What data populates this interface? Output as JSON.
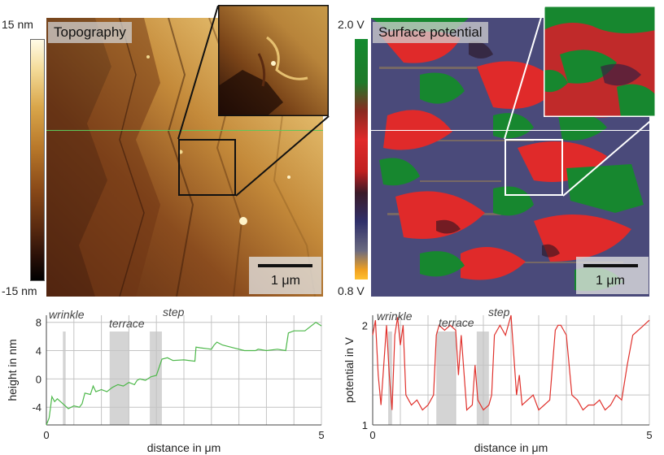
{
  "topography": {
    "title": "Topography",
    "cbar_max": "15 nm",
    "cbar_min": "-15 nm",
    "scale_bar": "1 μm"
  },
  "potential": {
    "title": "Surface potential",
    "cbar_max": "2.0 V",
    "cbar_min": "0.8 V",
    "scale_bar": "1 μm"
  },
  "chart_data": [
    {
      "type": "line",
      "xlabel": "distance in μm",
      "ylabel": "height in nm",
      "xlim": [
        0,
        5
      ],
      "ylim": [
        -6.5,
        9
      ],
      "xticks": [
        "0",
        "5"
      ],
      "yticks": [
        "-4",
        "0",
        "4",
        "8"
      ],
      "annotations": [
        "wrinkle",
        "terrace",
        "step"
      ],
      "highlight_ranges": [
        [
          0.3,
          0.35
        ],
        [
          1.15,
          1.5
        ],
        [
          1.88,
          2.1
        ]
      ],
      "series_color": "#4db84a",
      "x": [
        0,
        0.05,
        0.1,
        0.15,
        0.2,
        0.3,
        0.4,
        0.5,
        0.6,
        0.65,
        0.7,
        0.8,
        0.85,
        0.9,
        1.0,
        1.1,
        1.2,
        1.3,
        1.4,
        1.5,
        1.6,
        1.65,
        1.7,
        1.8,
        1.9,
        2.0,
        2.1,
        2.2,
        2.3,
        2.5,
        2.7,
        2.72,
        2.8,
        3.0,
        3.05,
        3.1,
        3.2,
        3.4,
        3.6,
        3.8,
        3.85,
        4.0,
        4.2,
        4.35,
        4.4,
        4.5,
        4.7,
        4.9,
        5.0
      ],
      "values": [
        -6.5,
        -5.5,
        -2.5,
        -3.2,
        -2.8,
        -3.5,
        -4.2,
        -3.8,
        -4.0,
        -3.5,
        -2.0,
        -2.2,
        -1.0,
        -1.8,
        -1.5,
        -1.8,
        -1.2,
        -0.8,
        -1.0,
        -0.5,
        -0.8,
        -0.2,
        0.0,
        -0.2,
        0.3,
        0.5,
        2.8,
        3.0,
        2.6,
        2.7,
        2.5,
        4.5,
        4.4,
        4.2,
        4.8,
        5.2,
        4.8,
        4.4,
        4.0,
        4.0,
        4.2,
        4.0,
        4.2,
        4.0,
        6.5,
        6.8,
        6.8,
        8.0,
        7.5
      ]
    },
    {
      "type": "line",
      "xlabel": "distance in μm",
      "ylabel": "potential in V",
      "xlim": [
        0,
        5
      ],
      "ylim": [
        1.0,
        2.1
      ],
      "xticks": [
        "0",
        "5"
      ],
      "yticks": [
        "1",
        "2"
      ],
      "annotations": [
        "wrinkle",
        "terrace",
        "step"
      ],
      "highlight_ranges": [
        [
          0.28,
          0.35
        ],
        [
          1.15,
          1.5
        ],
        [
          1.88,
          2.1
        ]
      ],
      "series_color": "#e0322d",
      "x": [
        0,
        0.05,
        0.1,
        0.15,
        0.2,
        0.25,
        0.3,
        0.35,
        0.4,
        0.45,
        0.5,
        0.55,
        0.6,
        0.7,
        0.8,
        0.9,
        1.0,
        1.1,
        1.15,
        1.2,
        1.3,
        1.4,
        1.5,
        1.55,
        1.6,
        1.7,
        1.8,
        1.85,
        1.9,
        2.0,
        2.1,
        2.15,
        2.2,
        2.3,
        2.4,
        2.5,
        2.6,
        2.65,
        2.7,
        2.8,
        2.9,
        3.0,
        3.1,
        3.2,
        3.3,
        3.35,
        3.4,
        3.5,
        3.6,
        3.7,
        3.8,
        3.9,
        4.0,
        4.1,
        4.2,
        4.3,
        4.4,
        4.5,
        4.6,
        4.7,
        4.8,
        4.9,
        5.0
      ],
      "values": [
        1.9,
        2.05,
        1.5,
        1.2,
        1.6,
        2.0,
        1.5,
        1.15,
        1.9,
        2.08,
        1.8,
        2.0,
        1.3,
        1.2,
        1.25,
        1.15,
        1.2,
        1.3,
        1.9,
        2.0,
        1.95,
        2.0,
        1.95,
        1.5,
        1.9,
        1.15,
        1.2,
        1.6,
        1.25,
        1.15,
        1.2,
        1.3,
        1.9,
        2.0,
        1.9,
        2.1,
        1.3,
        1.5,
        1.2,
        1.25,
        1.3,
        1.15,
        1.2,
        1.25,
        1.95,
        2.0,
        2.0,
        1.9,
        1.3,
        1.25,
        1.15,
        1.2,
        1.2,
        1.25,
        1.15,
        1.2,
        1.3,
        1.25,
        1.6,
        1.9,
        1.95,
        2.0,
        2.05
      ]
    }
  ]
}
